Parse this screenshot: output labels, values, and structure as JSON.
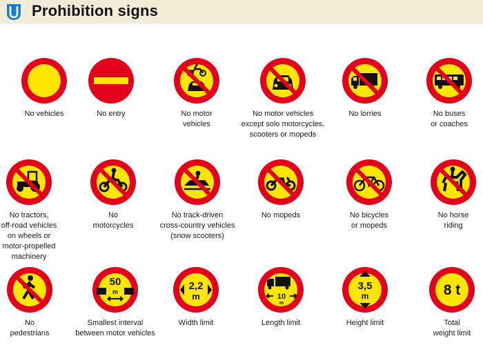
{
  "page": {
    "title": "Prohibition signs",
    "logo_icon": "road-sign-u-logo"
  },
  "colors": {
    "ring_red": "#e2001a",
    "fill_yellow": "#ffe600",
    "header_bg": "#f2ecd6",
    "logo_blue": "#1a7fc8"
  },
  "signs": [
    {
      "caption": "No vehicles",
      "icon": "plain-circle"
    },
    {
      "caption": "No entry",
      "icon": "no-entry-bar"
    },
    {
      "caption": "No motor\nvehicles",
      "icon": "motorcycle-and-car"
    },
    {
      "caption": "No motor vehicles\nexcept solo motorcycles,\nscooters or mopeds",
      "icon": "car"
    },
    {
      "caption": "No lorries",
      "icon": "lorry"
    },
    {
      "caption": "No buses\nor coaches",
      "icon": "bus"
    },
    {
      "caption": "No tractors,\noff-road vehicles\non wheels or\nmotor-propelled\nmachinery",
      "icon": "tractor"
    },
    {
      "caption": "No\nmotorcycles",
      "icon": "motorcycle"
    },
    {
      "caption": "No track-driven\ncross-country vehicles\n(snow scooters)",
      "icon": "snowmobile"
    },
    {
      "caption": "No mopeds",
      "icon": "moped"
    },
    {
      "caption": "No bicycles\nor mopeds",
      "icon": "bicycle"
    },
    {
      "caption": "No horse\nriding",
      "icon": "horse-rider"
    },
    {
      "caption": "No\npedestrians",
      "icon": "pedestrian"
    },
    {
      "caption": "Smallest interval\nbetween motor vehicles",
      "icon": "interval-50m",
      "text_top": "50",
      "text_unit": "m"
    },
    {
      "caption": "Width limit",
      "icon": "width-arrows",
      "text_top": "2,2",
      "text_unit": "m"
    },
    {
      "caption": "Length limit",
      "icon": "length-lorry",
      "text_top": "10",
      "text_unit": "m"
    },
    {
      "caption": "Height limit",
      "icon": "height-arrows",
      "text_top": "3,5",
      "text_unit": "m"
    },
    {
      "caption": "Total\nweight limit",
      "icon": "weight",
      "text_top": "8 t"
    }
  ]
}
